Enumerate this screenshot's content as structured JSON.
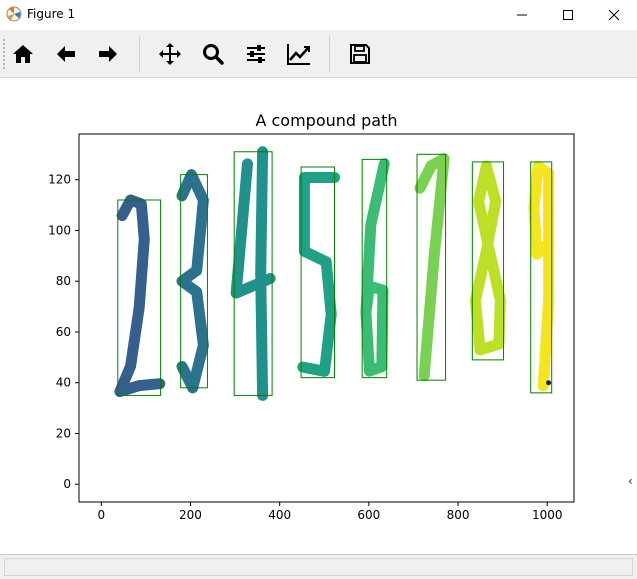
{
  "window": {
    "title": "Figure 1",
    "controls": [
      "minimize",
      "maximize",
      "close"
    ]
  },
  "toolbar": {
    "buttons": [
      {
        "name": "home",
        "icon": "home-icon"
      },
      {
        "name": "back",
        "icon": "arrow-left-icon"
      },
      {
        "name": "forward",
        "icon": "arrow-right-icon"
      },
      {
        "name": "pan",
        "icon": "move-icon"
      },
      {
        "name": "zoom",
        "icon": "zoom-icon"
      },
      {
        "name": "subplots",
        "icon": "sliders-icon"
      },
      {
        "name": "customize",
        "icon": "chart-line-icon"
      },
      {
        "name": "save",
        "icon": "save-icon"
      }
    ]
  },
  "chart_data": {
    "type": "scatter",
    "title": "A compound path",
    "xlabel": "",
    "ylabel": "",
    "xlim": [
      -50,
      1060
    ],
    "ylim": [
      -7,
      138
    ],
    "x_ticks": [
      0,
      200,
      400,
      600,
      800,
      1000
    ],
    "y_ticks": [
      0,
      20,
      40,
      60,
      80,
      100,
      120
    ],
    "grid": false,
    "digits": [
      {
        "label": "2",
        "color": "#355f8d",
        "box": {
          "x0": 37,
          "x1": 133,
          "y0": 35,
          "y1": 112
        }
      },
      {
        "label": "3",
        "color": "#2c718e",
        "box": {
          "x0": 178,
          "x1": 238,
          "y0": 38,
          "y1": 122
        }
      },
      {
        "label": "4",
        "color": "#21918c",
        "box": {
          "x0": 298,
          "x1": 383,
          "y0": 35,
          "y1": 131
        }
      },
      {
        "label": "5",
        "color": "#1fa187",
        "box": {
          "x0": 448,
          "x1": 523,
          "y0": 42,
          "y1": 125
        }
      },
      {
        "label": "6",
        "color": "#3bbc75",
        "box": {
          "x0": 585,
          "x1": 640,
          "y0": 42,
          "y1": 128
        }
      },
      {
        "label": "7",
        "color": "#7ad151",
        "box": {
          "x0": 708,
          "x1": 772,
          "y0": 41,
          "y1": 130
        }
      },
      {
        "label": "8",
        "color": "#bddf26",
        "box": {
          "x0": 832,
          "x1": 902,
          "y0": 49,
          "y1": 127
        }
      },
      {
        "label": "9",
        "color": "#f4e61e",
        "box": {
          "x0": 963,
          "x1": 1010,
          "y0": 36,
          "y1": 127
        }
      }
    ],
    "marker_point": {
      "x": 1003,
      "y": 40
    },
    "box_color": "#008000"
  }
}
